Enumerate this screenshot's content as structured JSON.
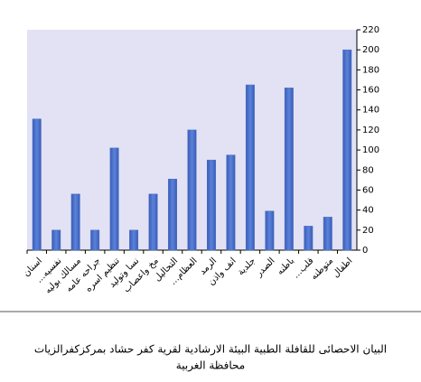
{
  "chart_data": {
    "type": "bar",
    "title": [
      "البيان الاحصائى للقافلة الطبية البيئة الارشادية لقرية كفر حشاد بمركزكفرالزيات",
      "محافظة الغربية"
    ],
    "categories": [
      "اسنان",
      "...نفسيه",
      "مسالك بوليه",
      "جراحه عامه",
      "تنظيم اسره",
      "نسا وتوليد",
      "مخ واعصاب",
      "التحاليل",
      "...العظام",
      "الرمد",
      "انف واذن",
      "جلدية",
      "الصدر",
      "باطنه",
      "...قلب",
      "متوطنه",
      "اطفال"
    ],
    "values": [
      131,
      20,
      56,
      20,
      102,
      20,
      56,
      71,
      120,
      90,
      95,
      165,
      39,
      162,
      24,
      33,
      200
    ],
    "color": "#4a6fc8",
    "ylim": [
      0,
      220
    ],
    "yticks": [
      0,
      20,
      40,
      60,
      80,
      100,
      120,
      140,
      160,
      180,
      200,
      220
    ],
    "grid": false
  }
}
